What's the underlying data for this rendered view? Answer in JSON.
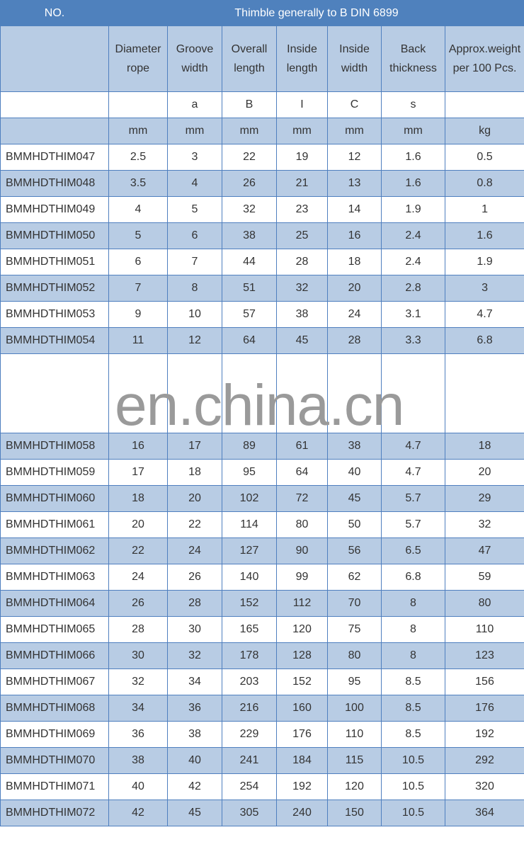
{
  "header": {
    "no": "NO.",
    "title": "Thimble generally to B DIN 6899"
  },
  "columns": [
    {
      "label": "",
      "symbol": "",
      "unit": ""
    },
    {
      "label": "Diameter rope",
      "symbol": "",
      "unit": "mm"
    },
    {
      "label": "Groove width",
      "symbol": "a",
      "unit": "mm"
    },
    {
      "label": "Overall length",
      "symbol": "B",
      "unit": "mm"
    },
    {
      "label": "Inside length",
      "symbol": "I",
      "unit": "mm"
    },
    {
      "label": "Inside width",
      "symbol": "C",
      "unit": "mm"
    },
    {
      "label": "Back thickness",
      "symbol": "s",
      "unit": "mm"
    },
    {
      "label": "Approx.weight per 100 Pcs.",
      "symbol": "",
      "unit": "kg"
    }
  ],
  "rows_before": [
    [
      "BMMHDTHIM047",
      "2.5",
      "3",
      "22",
      "19",
      "12",
      "1.6",
      "0.5"
    ],
    [
      "BMMHDTHIM048",
      "3.5",
      "4",
      "26",
      "21",
      "13",
      "1.6",
      "0.8"
    ],
    [
      "BMMHDTHIM049",
      "4",
      "5",
      "32",
      "23",
      "14",
      "1.9",
      "1"
    ],
    [
      "BMMHDTHIM050",
      "5",
      "6",
      "38",
      "25",
      "16",
      "2.4",
      "1.6"
    ],
    [
      "BMMHDTHIM051",
      "6",
      "7",
      "44",
      "28",
      "18",
      "2.4",
      "1.9"
    ],
    [
      "BMMHDTHIM052",
      "7",
      "8",
      "51",
      "32",
      "20",
      "2.8",
      "3"
    ],
    [
      "BMMHDTHIM053",
      "9",
      "10",
      "57",
      "38",
      "24",
      "3.1",
      "4.7"
    ],
    [
      "BMMHDTHIM054",
      "11",
      "12",
      "64",
      "45",
      "28",
      "3.3",
      "6.8"
    ]
  ],
  "watermark": "en.china.cn",
  "rows_after": [
    [
      "BMMHDTHIM058",
      "16",
      "17",
      "89",
      "61",
      "38",
      "4.7",
      "18"
    ],
    [
      "BMMHDTHIM059",
      "17",
      "18",
      "95",
      "64",
      "40",
      "4.7",
      "20"
    ],
    [
      "BMMHDTHIM060",
      "18",
      "20",
      "102",
      "72",
      "45",
      "5.7",
      "29"
    ],
    [
      "BMMHDTHIM061",
      "20",
      "22",
      "114",
      "80",
      "50",
      "5.7",
      "32"
    ],
    [
      "BMMHDTHIM062",
      "22",
      "24",
      "127",
      "90",
      "56",
      "6.5",
      "47"
    ],
    [
      "BMMHDTHIM063",
      "24",
      "26",
      "140",
      "99",
      "62",
      "6.8",
      "59"
    ],
    [
      "BMMHDTHIM064",
      "26",
      "28",
      "152",
      "112",
      "70",
      "8",
      "80"
    ],
    [
      "BMMHDTHIM065",
      "28",
      "30",
      "165",
      "120",
      "75",
      "8",
      "110"
    ],
    [
      "BMMHDTHIM066",
      "30",
      "32",
      "178",
      "128",
      "80",
      "8",
      "123"
    ],
    [
      "BMMHDTHIM067",
      "32",
      "34",
      "203",
      "152",
      "95",
      "8.5",
      "156"
    ],
    [
      "BMMHDTHIM068",
      "34",
      "36",
      "216",
      "160",
      "100",
      "8.5",
      "176"
    ],
    [
      "BMMHDTHIM069",
      "36",
      "38",
      "229",
      "176",
      "110",
      "8.5",
      "192"
    ],
    [
      "BMMHDTHIM070",
      "38",
      "40",
      "241",
      "184",
      "115",
      "10.5",
      "292"
    ],
    [
      "BMMHDTHIM071",
      "40",
      "42",
      "254",
      "192",
      "120",
      "10.5",
      "320"
    ],
    [
      "BMMHDTHIM072",
      "42",
      "45",
      "305",
      "240",
      "150",
      "10.5",
      "364"
    ]
  ]
}
